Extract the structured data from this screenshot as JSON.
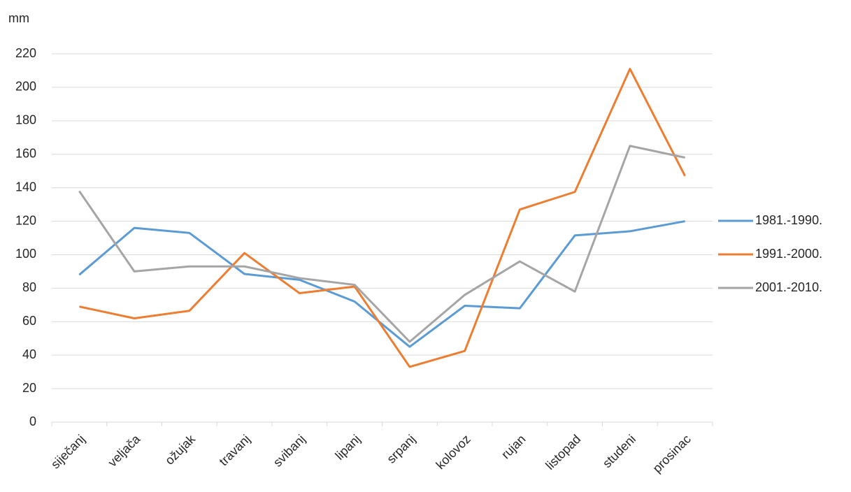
{
  "chart_data": {
    "type": "line",
    "y_label": "mm",
    "categories": [
      "siječanj",
      "veljača",
      "ožujak",
      "travanj",
      "svibanj",
      "lipanj",
      "srpanj",
      "kolovoz",
      "rujan",
      "listopad",
      "studeni",
      "prosinac"
    ],
    "series": [
      {
        "name": "1981.-1990.",
        "color": "#5b9bd5",
        "values": [
          88,
          116,
          113,
          88.5,
          85,
          72,
          45,
          69.5,
          68,
          111.5,
          114,
          120
        ]
      },
      {
        "name": "1991.-2000.",
        "color": "#ed7d31",
        "values": [
          69,
          62,
          66.5,
          101,
          77,
          81,
          33,
          42.5,
          127,
          137.5,
          211,
          147
        ]
      },
      {
        "name": "2001.-2010.",
        "color": "#a5a5a5",
        "values": [
          138,
          90,
          93,
          93,
          86,
          82,
          48,
          76,
          96,
          78,
          165,
          158
        ]
      }
    ],
    "ylim": [
      0,
      220
    ],
    "yticks": [
      0,
      20,
      40,
      60,
      80,
      100,
      120,
      140,
      160,
      180,
      200,
      220
    ],
    "grid": true,
    "legend": "right"
  }
}
